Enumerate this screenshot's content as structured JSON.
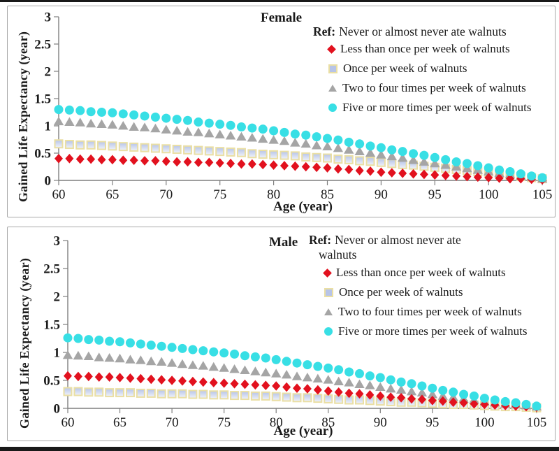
{
  "page": {
    "background": "#FFFFFF",
    "frame_top_color": "#191919",
    "frame_bottom_color": "#191919",
    "panel_border_color": "#A8A8A8",
    "axis_color": "#7F7F7F",
    "text_color": "#1A1A1A"
  },
  "chart_data": [
    {
      "type": "scatter",
      "title": "Female",
      "xlabel": "Age (year)",
      "ylabel": "Gained Life Expectancy (year)",
      "xlim": [
        60,
        105
      ],
      "ylim": [
        0,
        3
      ],
      "grid": false,
      "legend_position": "top-right-inside",
      "x_ticks": [
        60,
        65,
        70,
        75,
        80,
        85,
        90,
        95,
        100,
        105
      ],
      "y_ticks": [
        0,
        0.5,
        1,
        1.5,
        2,
        2.5,
        3
      ],
      "legend": {
        "ref_label": "Ref:",
        "ref_lines": [
          "Never or almost never ate walnuts"
        ]
      },
      "x": [
        60,
        61,
        62,
        63,
        64,
        65,
        66,
        67,
        68,
        69,
        70,
        71,
        72,
        73,
        74,
        75,
        76,
        77,
        78,
        79,
        80,
        81,
        82,
        83,
        84,
        85,
        86,
        87,
        88,
        89,
        90,
        91,
        92,
        93,
        94,
        95,
        96,
        97,
        98,
        99,
        100,
        101,
        102,
        103,
        104,
        105
      ],
      "series": [
        {
          "name": "Less than once per week of walnuts",
          "marker": "diamond",
          "color": "#E2111E",
          "values": [
            0.4,
            0.4,
            0.39,
            0.39,
            0.38,
            0.38,
            0.37,
            0.37,
            0.36,
            0.36,
            0.35,
            0.34,
            0.34,
            0.33,
            0.33,
            0.32,
            0.31,
            0.3,
            0.3,
            0.29,
            0.28,
            0.27,
            0.26,
            0.25,
            0.24,
            0.23,
            0.21,
            0.2,
            0.18,
            0.17,
            0.15,
            0.14,
            0.13,
            0.12,
            0.11,
            0.1,
            0.09,
            0.08,
            0.07,
            0.06,
            0.05,
            0.04,
            0.03,
            0.03,
            0.02,
            0.01
          ]
        },
        {
          "name": "Once per week of walnuts",
          "marker": "square",
          "color": "#C2CDEA",
          "fill_top": "#B7C4E8",
          "fill_bottom": "#F0F3FA",
          "border": "#EADFA4",
          "values": [
            0.67,
            0.66,
            0.65,
            0.65,
            0.64,
            0.63,
            0.62,
            0.61,
            0.6,
            0.59,
            0.58,
            0.57,
            0.56,
            0.55,
            0.54,
            0.53,
            0.52,
            0.51,
            0.49,
            0.48,
            0.47,
            0.46,
            0.45,
            0.43,
            0.42,
            0.41,
            0.39,
            0.38,
            0.36,
            0.35,
            0.33,
            0.31,
            0.29,
            0.28,
            0.26,
            0.24,
            0.22,
            0.2,
            0.18,
            0.16,
            0.14,
            0.12,
            0.1,
            0.07,
            0.05,
            0.03
          ]
        },
        {
          "name": "Two to four times per week of walnuts",
          "marker": "triangle",
          "color": "#A5A5A5",
          "values": [
            1.08,
            1.07,
            1.06,
            1.04,
            1.03,
            1.02,
            1.0,
            0.98,
            0.97,
            0.95,
            0.93,
            0.91,
            0.89,
            0.88,
            0.86,
            0.84,
            0.82,
            0.8,
            0.78,
            0.76,
            0.74,
            0.72,
            0.69,
            0.67,
            0.64,
            0.62,
            0.59,
            0.56,
            0.53,
            0.5,
            0.47,
            0.44,
            0.41,
            0.37,
            0.34,
            0.31,
            0.28,
            0.25,
            0.22,
            0.19,
            0.16,
            0.13,
            0.11,
            0.08,
            0.06,
            0.03
          ]
        },
        {
          "name": "Five or more times per week of walnuts",
          "marker": "circle",
          "color": "#38DFE5",
          "values": [
            1.3,
            1.29,
            1.28,
            1.26,
            1.25,
            1.24,
            1.22,
            1.2,
            1.18,
            1.16,
            1.14,
            1.12,
            1.1,
            1.07,
            1.05,
            1.03,
            1.01,
            0.98,
            0.96,
            0.94,
            0.91,
            0.88,
            0.85,
            0.83,
            0.8,
            0.77,
            0.74,
            0.7,
            0.67,
            0.63,
            0.6,
            0.56,
            0.53,
            0.49,
            0.46,
            0.42,
            0.38,
            0.34,
            0.31,
            0.27,
            0.23,
            0.19,
            0.16,
            0.12,
            0.08,
            0.05
          ]
        }
      ]
    },
    {
      "type": "scatter",
      "title": "Male",
      "xlabel": "Age (year)",
      "ylabel": "Gained Life Expectancy (year)",
      "xlim": [
        60,
        105
      ],
      "ylim": [
        0,
        3
      ],
      "grid": false,
      "legend_position": "top-right-inside",
      "x_ticks": [
        60,
        65,
        70,
        75,
        80,
        85,
        90,
        95,
        100,
        105
      ],
      "y_ticks": [
        0,
        0.5,
        1,
        1.5,
        2,
        2.5,
        3
      ],
      "legend": {
        "ref_label": "Ref:",
        "ref_lines": [
          "Never or almost never ate",
          "walnuts"
        ]
      },
      "x": [
        60,
        61,
        62,
        63,
        64,
        65,
        66,
        67,
        68,
        69,
        70,
        71,
        72,
        73,
        74,
        75,
        76,
        77,
        78,
        79,
        80,
        81,
        82,
        83,
        84,
        85,
        86,
        87,
        88,
        89,
        90,
        91,
        92,
        93,
        94,
        95,
        96,
        97,
        98,
        99,
        100,
        101,
        102,
        103,
        104,
        105
      ],
      "series": [
        {
          "name": "Less than once per week of walnuts",
          "marker": "diamond",
          "color": "#E2111E",
          "values": [
            0.58,
            0.57,
            0.57,
            0.56,
            0.56,
            0.55,
            0.54,
            0.53,
            0.52,
            0.51,
            0.5,
            0.49,
            0.48,
            0.47,
            0.46,
            0.45,
            0.44,
            0.43,
            0.42,
            0.41,
            0.4,
            0.38,
            0.36,
            0.35,
            0.33,
            0.31,
            0.29,
            0.27,
            0.26,
            0.24,
            0.22,
            0.2,
            0.19,
            0.17,
            0.16,
            0.14,
            0.13,
            0.11,
            0.1,
            0.08,
            0.07,
            0.06,
            0.05,
            0.04,
            0.03,
            0.02
          ]
        },
        {
          "name": "Once per week of walnuts",
          "marker": "square",
          "color": "#C2CDEA",
          "fill_top": "#B7C4E8",
          "fill_bottom": "#F0F3FA",
          "border": "#EADFA4",
          "values": [
            0.3,
            0.3,
            0.29,
            0.29,
            0.28,
            0.28,
            0.28,
            0.27,
            0.27,
            0.26,
            0.26,
            0.26,
            0.25,
            0.25,
            0.24,
            0.24,
            0.23,
            0.23,
            0.22,
            0.22,
            0.21,
            0.2,
            0.19,
            0.19,
            0.18,
            0.17,
            0.16,
            0.15,
            0.15,
            0.14,
            0.13,
            0.12,
            0.11,
            0.11,
            0.1,
            0.09,
            0.08,
            0.07,
            0.07,
            0.06,
            0.05,
            0.04,
            0.03,
            0.03,
            0.02,
            0.01
          ]
        },
        {
          "name": "Two to four times per week of walnuts",
          "marker": "triangle",
          "color": "#A5A5A5",
          "values": [
            0.95,
            0.94,
            0.93,
            0.91,
            0.9,
            0.89,
            0.87,
            0.86,
            0.84,
            0.83,
            0.81,
            0.79,
            0.77,
            0.76,
            0.74,
            0.72,
            0.7,
            0.68,
            0.66,
            0.64,
            0.62,
            0.6,
            0.57,
            0.55,
            0.53,
            0.51,
            0.48,
            0.46,
            0.43,
            0.41,
            0.38,
            0.35,
            0.33,
            0.3,
            0.28,
            0.25,
            0.22,
            0.2,
            0.17,
            0.15,
            0.12,
            0.1,
            0.08,
            0.07,
            0.05,
            0.03
          ]
        },
        {
          "name": "Five or more times per week of walnuts",
          "marker": "circle",
          "color": "#38DFE5",
          "values": [
            1.26,
            1.25,
            1.23,
            1.22,
            1.2,
            1.19,
            1.17,
            1.15,
            1.13,
            1.11,
            1.09,
            1.07,
            1.05,
            1.03,
            1.01,
            0.99,
            0.97,
            0.94,
            0.92,
            0.9,
            0.87,
            0.84,
            0.81,
            0.78,
            0.75,
            0.72,
            0.69,
            0.65,
            0.62,
            0.58,
            0.55,
            0.51,
            0.47,
            0.44,
            0.4,
            0.36,
            0.32,
            0.29,
            0.25,
            0.22,
            0.18,
            0.15,
            0.12,
            0.1,
            0.07,
            0.04
          ]
        }
      ]
    }
  ]
}
